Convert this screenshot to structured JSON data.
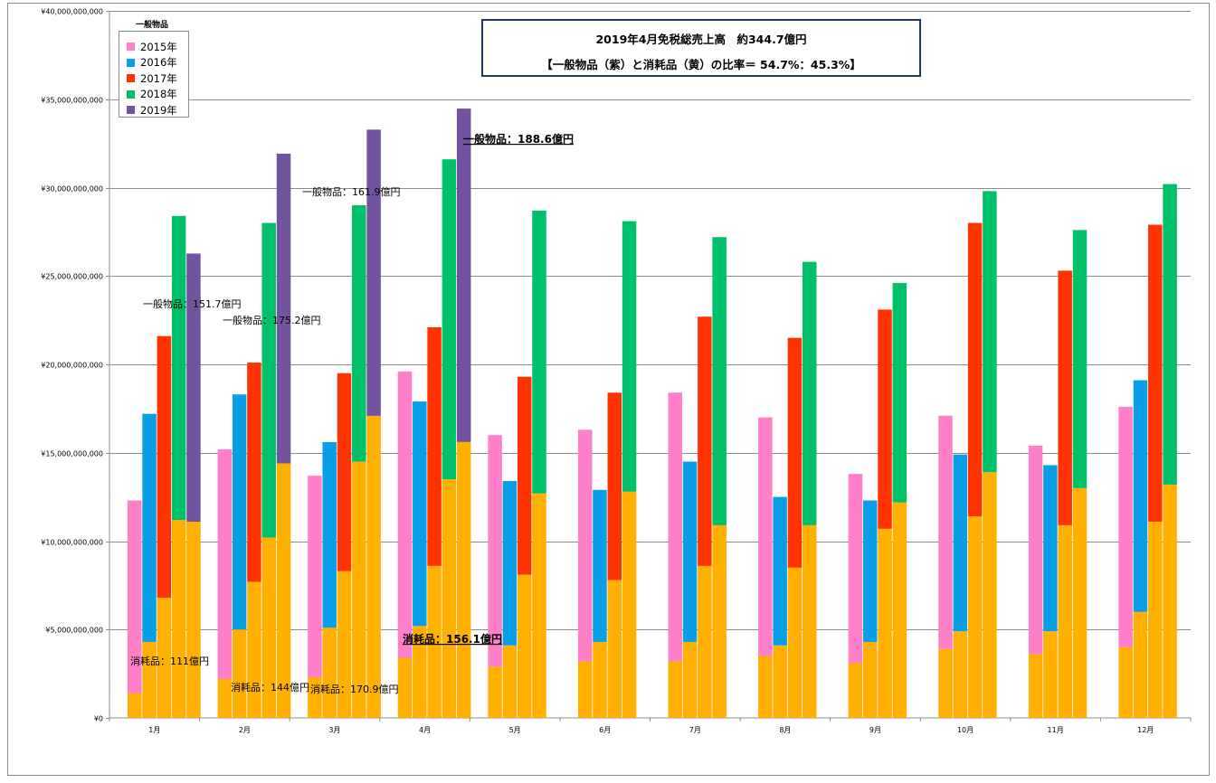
{
  "chart_data": {
    "type": "bar",
    "title": "2019年4月免税総売上高　約344.7億円",
    "subtitle": "【一般物品（紫）と消耗品（黄）の比率＝ 54.7%：45.3%】",
    "legend_title": "一般物品",
    "legend_position": "top-left",
    "xlabel": "",
    "ylabel": "",
    "ylim": [
      0,
      40000000000
    ],
    "yticks": [
      0,
      5000000000,
      10000000000,
      15000000000,
      20000000000,
      25000000000,
      30000000000,
      35000000000,
      40000000000
    ],
    "ytick_labels": [
      "¥0",
      "¥5,000,000,000",
      "¥10,000,000,000",
      "¥15,000,000,000",
      "¥20,000,000,000",
      "¥25,000,000,000",
      "¥30,000,000,000",
      "¥35,000,000,000",
      "¥40,000,000,000"
    ],
    "grid": true,
    "categories": [
      "1月",
      "2月",
      "3月",
      "4月",
      "5月",
      "6月",
      "7月",
      "8月",
      "9月",
      "10月",
      "11月",
      "12月"
    ],
    "stack_note": "Each year bar is stacked: 消耗品 (orange, bottom) + 一般物品 (year color, top)",
    "consumables_color": "#ffb000",
    "series": [
      {
        "name": "2015年",
        "color": "#ff7fc8",
        "consumables": [
          1400000000.0,
          2200000000.0,
          2300000000.0,
          3400000000.0,
          2900000000.0,
          3200000000.0,
          3200000000.0,
          3500000000.0,
          3100000000.0,
          3900000000.0,
          3600000000.0,
          4000000000.0
        ],
        "general": [
          10900000000.0,
          13000000000.0,
          11400000000.0,
          16200000000.0,
          13100000000.0,
          13100000000.0,
          15200000000.0,
          13500000000.0,
          10700000000.0,
          13200000000.0,
          11800000000.0,
          13600000000.0
        ]
      },
      {
        "name": "2016年",
        "color": "#0a9ee6",
        "consumables": [
          4300000000.0,
          5000000000.0,
          5100000000.0,
          5200000000.0,
          4100000000.0,
          4300000000.0,
          4300000000.0,
          4100000000.0,
          4300000000.0,
          4900000000.0,
          4900000000.0,
          6000000000.0
        ],
        "general": [
          12900000000.0,
          13300000000.0,
          10500000000.0,
          12700000000.0,
          9300000000.0,
          8600000000.0,
          10200000000.0,
          8400000000.0,
          8000000000.0,
          10000000000.0,
          9400000000.0,
          13100000000.0
        ]
      },
      {
        "name": "2017年",
        "color": "#ff3300",
        "consumables": [
          6800000000.0,
          7700000000.0,
          8300000000.0,
          8600000000.0,
          8100000000.0,
          7800000000.0,
          8600000000.0,
          8500000000.0,
          10700000000.0,
          11400000000.0,
          10900000000.0,
          11100000000.0
        ],
        "general": [
          14800000000.0,
          12400000000.0,
          11200000000.0,
          13500000000.0,
          11200000000.0,
          10600000000.0,
          14100000000.0,
          13000000000.0,
          12400000000.0,
          16600000000.0,
          14400000000.0,
          16800000000.0
        ]
      },
      {
        "name": "2018年",
        "color": "#00c06a",
        "consumables": [
          11200000000.0,
          10200000000.0,
          14500000000.0,
          13500000000.0,
          12700000000.0,
          12800000000.0,
          10900000000.0,
          10900000000.0,
          12200000000.0,
          13900000000.0,
          13000000000.0,
          13200000000.0
        ],
        "general": [
          17200000000.0,
          17800000000.0,
          14500000000.0,
          18100000000.0,
          16000000000.0,
          15300000000.0,
          16300000000.0,
          14900000000.0,
          12400000000.0,
          15900000000.0,
          14600000000.0,
          17000000000.0
        ]
      },
      {
        "name": "2019年",
        "color": "#7153a0",
        "consumables": [
          11100000000.0,
          14400000000.0,
          17090000000.0,
          15610000000.0,
          null,
          null,
          null,
          null,
          null,
          null,
          null,
          null
        ],
        "general": [
          15170000000.0,
          17520000000.0,
          16190000000.0,
          18860000000.0,
          null,
          null,
          null,
          null,
          null,
          null,
          null,
          null
        ]
      }
    ],
    "annotations": [
      {
        "text": "一般物品：151.7億円",
        "month": "1月",
        "style": "normal",
        "anchor": "general"
      },
      {
        "text": "消耗品：111億円",
        "month": "1月",
        "style": "normal",
        "anchor": "consumables"
      },
      {
        "text": "一般物品：175.2億円",
        "month": "2月",
        "style": "normal",
        "anchor": "general"
      },
      {
        "text": "消耗品：144億円",
        "month": "2月",
        "style": "normal",
        "anchor": "consumables"
      },
      {
        "text": "一般物品：161.9億円",
        "month": "3月",
        "style": "normal",
        "anchor": "general"
      },
      {
        "text": "消耗品：170.9億円",
        "month": "3月",
        "style": "normal",
        "anchor": "consumables"
      },
      {
        "text": "一般物品：188.6億円",
        "month": "4月",
        "style": "bold-underline",
        "anchor": "general"
      },
      {
        "text": "消耗品：156.1億円",
        "month": "4月",
        "style": "bold-underline",
        "anchor": "consumables"
      }
    ]
  }
}
